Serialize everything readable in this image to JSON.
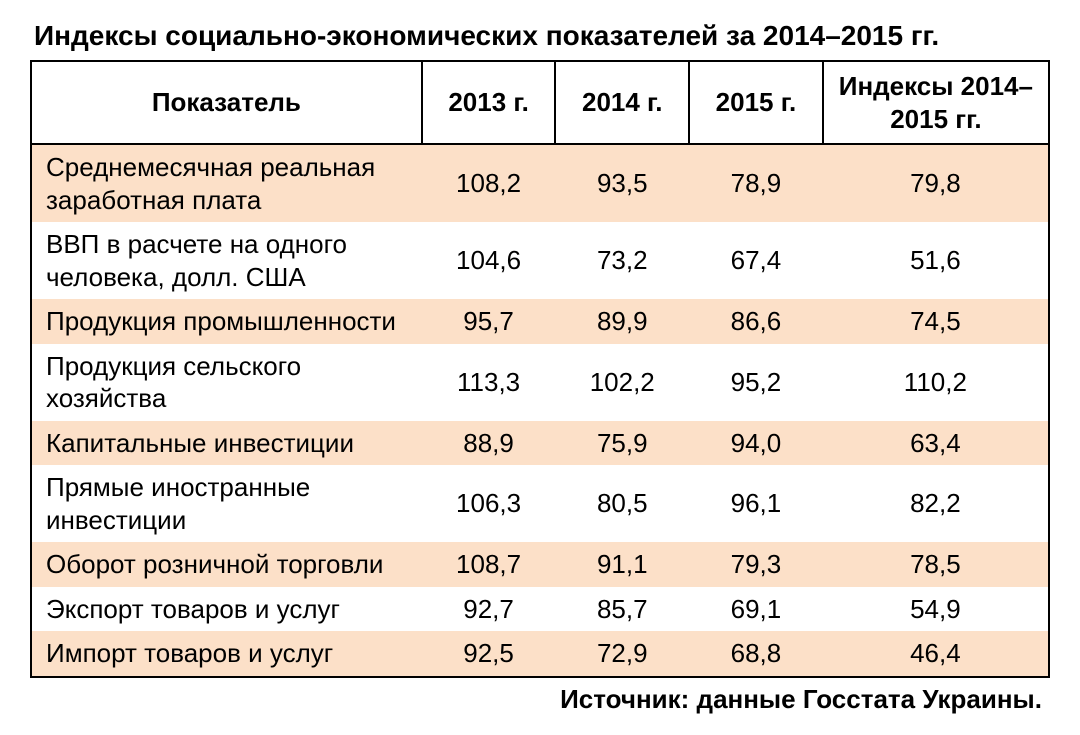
{
  "title": "Индексы социально-экономических показателей за 2014–2015 гг.",
  "source": "Источник: данные Госстата Украины.",
  "table": {
    "columns": {
      "indicator": "Показатель",
      "y2013": "2013 г.",
      "y2014": "2014 г.",
      "y2015": "2015 г.",
      "index": "Индексы 2014–2015 гг."
    },
    "stripe_color": "#fce0c8",
    "background_color": "#ffffff",
    "border_color": "#000000",
    "font_size_pt": 20,
    "rows": [
      {
        "label": "Среднемесячная реальная заработная плата",
        "y2013": "108,2",
        "y2014": "93,5",
        "y2015": "78,9",
        "index": "79,8",
        "shaded": true
      },
      {
        "label": "ВВП в расчете на одного человека, долл. США",
        "y2013": "104,6",
        "y2014": "73,2",
        "y2015": "67,4",
        "index": "51,6",
        "shaded": false
      },
      {
        "label": "Продукция промышленности",
        "y2013": "95,7",
        "y2014": "89,9",
        "y2015": "86,6",
        "index": "74,5",
        "shaded": true
      },
      {
        "label": "Продукция сельского хозяйства",
        "y2013": "113,3",
        "y2014": "102,2",
        "y2015": "95,2",
        "index": "110,2",
        "shaded": false
      },
      {
        "label": "Капитальные инвестиции",
        "y2013": "88,9",
        "y2014": "75,9",
        "y2015": "94,0",
        "index": "63,4",
        "shaded": true
      },
      {
        "label": "Прямые иностранные инвестиции",
        "y2013": "106,3",
        "y2014": "80,5",
        "y2015": "96,1",
        "index": "82,2",
        "shaded": false
      },
      {
        "label": "Оборот розничной торговли",
        "y2013": "108,7",
        "y2014": "91,1",
        "y2015": "79,3",
        "index": "78,5",
        "shaded": true
      },
      {
        "label": "Экспорт товаров и услуг",
        "y2013": "92,7",
        "y2014": "85,7",
        "y2015": "69,1",
        "index": "54,9",
        "shaded": false
      },
      {
        "label": "Импорт товаров и услуг",
        "y2013": "92,5",
        "y2014": "72,9",
        "y2015": "68,8",
        "index": "46,4",
        "shaded": true
      }
    ]
  }
}
